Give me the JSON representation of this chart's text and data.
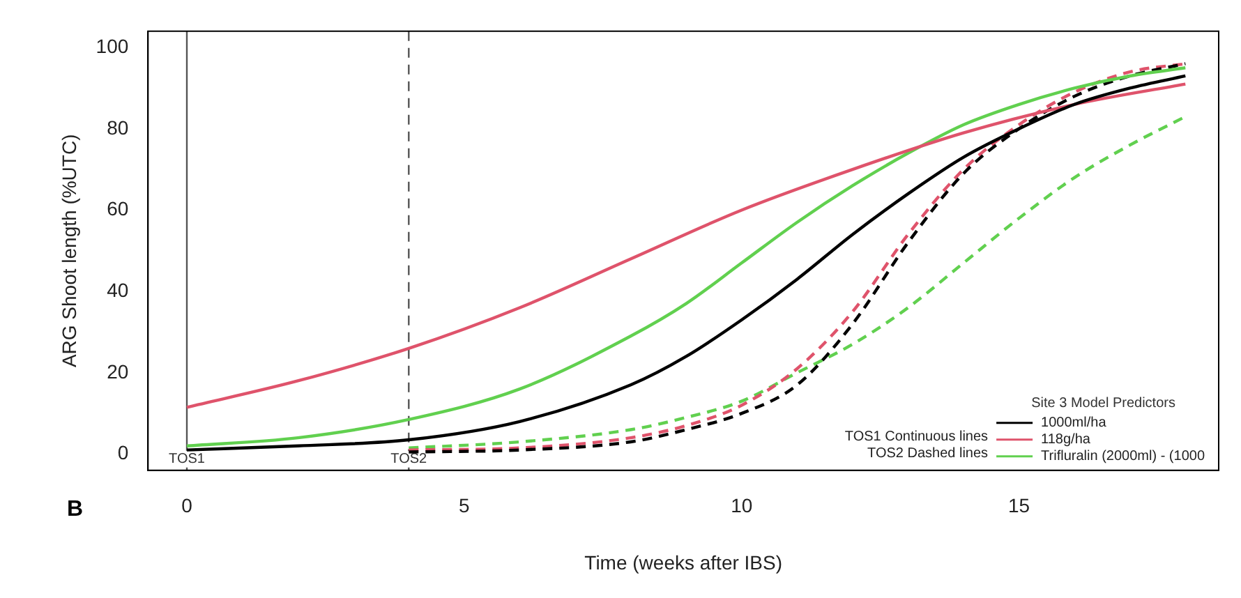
{
  "chart_data": {
    "type": "line",
    "xlabel": "Time (weeks after IBS)",
    "ylabel": "ARG Shoot length (%UTC)",
    "legend_title": "Site 3 Model Predictors",
    "legend": "bottom right",
    "marker": "none",
    "grid": false,
    "xlim": [
      -0.7,
      18.6
    ],
    "xticks": [
      0,
      5,
      10,
      15
    ],
    "ylim": [
      -4,
      104
    ],
    "yticks": [
      0,
      20,
      40,
      60,
      80,
      100
    ],
    "series": [
      {
        "name": "1000ml/ha",
        "color": "#000000",
        "line_style": "solid",
        "x": [
          0,
          2,
          4,
          6,
          8,
          9,
          10,
          11,
          12,
          13,
          14,
          15,
          16,
          17,
          18
        ],
        "values": [
          1,
          2,
          3.5,
          8,
          17,
          24,
          33,
          43,
          54,
          64,
          73,
          80,
          86,
          90,
          93
        ]
      },
      {
        "name": "118g/ha",
        "color": "#df536b",
        "line_style": "solid",
        "x": [
          0,
          2,
          4,
          6,
          8,
          10,
          12,
          14,
          16,
          18
        ],
        "values": [
          11.5,
          18,
          26,
          36,
          48,
          60,
          70,
          79,
          86,
          91
        ]
      },
      {
        "name": "Trifluralin (2000ml) - (1000",
        "color": "#61d04f",
        "line_style": "solid",
        "x": [
          0,
          2,
          4,
          6,
          8,
          9,
          10,
          11,
          12,
          13,
          14,
          15,
          16,
          17,
          18
        ],
        "values": [
          2,
          4,
          8.5,
          16,
          29,
          37,
          47,
          57,
          66,
          74,
          81,
          86,
          90,
          93,
          95
        ]
      },
      {
        "color": "#000000",
        "line_style": "dashed",
        "x": [
          4,
          6,
          8,
          9,
          10,
          11,
          12,
          13,
          14,
          15,
          16,
          17,
          18
        ],
        "values": [
          0.5,
          1,
          3,
          6,
          10,
          17,
          32,
          52,
          69,
          80,
          88,
          93,
          96
        ]
      },
      {
        "color": "#df536b",
        "line_style": "dashed",
        "x": [
          4,
          6,
          8,
          9,
          10,
          11,
          12,
          13,
          14,
          15,
          16,
          17,
          18
        ],
        "values": [
          1,
          1.5,
          4,
          7,
          12,
          21,
          35,
          54,
          70,
          81,
          89,
          94,
          96
        ]
      },
      {
        "color": "#61d04f",
        "line_style": "dashed",
        "x": [
          4,
          6,
          8,
          9,
          10,
          11,
          12,
          13,
          14,
          15,
          16,
          17,
          18
        ],
        "values": [
          1.5,
          3,
          6,
          9,
          13,
          20,
          27,
          36,
          47,
          58,
          68,
          76,
          83
        ]
      }
    ],
    "ref_lines": [
      {
        "axis": "x",
        "value": 0,
        "label": "TOS1",
        "color": "#555555",
        "line_style": "solid"
      },
      {
        "axis": "x",
        "value": 4,
        "label": "TOS2",
        "color": "#555555",
        "line_style": "dashed"
      }
    ],
    "annotations": [
      "TOS1 Continuous lines",
      "TOS2 Dashed lines",
      "B"
    ]
  }
}
